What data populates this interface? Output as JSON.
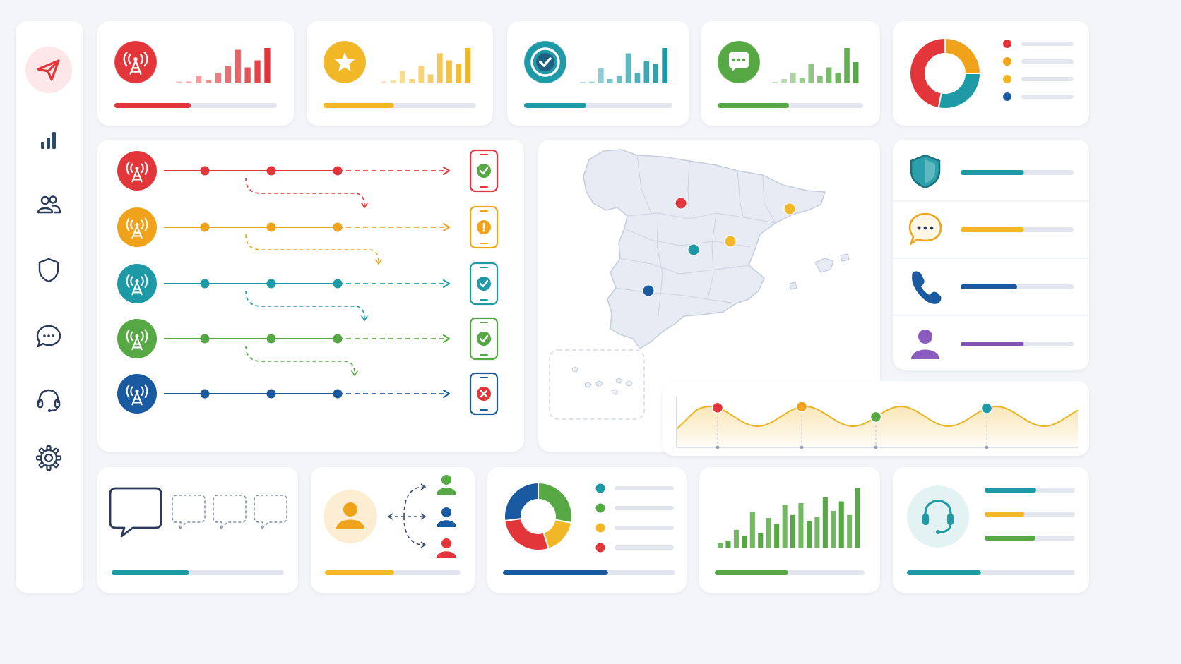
{
  "colors": {
    "red": "#e3363b",
    "orange": "#f0a21a",
    "yellow": "#f2b726",
    "teal": "#1d9aa6",
    "green": "#56a844",
    "blue": "#1a5aa0",
    "purple": "#8055b8",
    "navy": "#2a3a5a",
    "track": "#e3e6ee",
    "bg": "#f3f5f9"
  },
  "sidebar": {
    "items": [
      {
        "icon": "send-icon",
        "active": true
      },
      {
        "icon": "bar-chart-icon",
        "active": false
      },
      {
        "icon": "users-icon",
        "active": false
      },
      {
        "icon": "shield-icon",
        "active": false
      },
      {
        "icon": "chat-icon",
        "active": false
      },
      {
        "icon": "headset-icon",
        "active": false
      },
      {
        "icon": "gear-icon",
        "active": false
      }
    ]
  },
  "kpi_cards": [
    {
      "icon": "antenna-icon",
      "color": "red",
      "progress": 0.47,
      "bars": [
        0.05,
        0.05,
        0.22,
        0.1,
        0.3,
        0.5,
        0.95,
        0.45,
        0.65,
        1.0
      ]
    },
    {
      "icon": "star-icon",
      "color": "yellow",
      "progress": 0.46,
      "bars": [
        0.05,
        0.08,
        0.35,
        0.12,
        0.5,
        0.25,
        0.85,
        0.65,
        0.55,
        1.0
      ]
    },
    {
      "icon": "check-icon",
      "color": "teal",
      "progress": 0.42,
      "bars": [
        0.03,
        0.05,
        0.42,
        0.12,
        0.22,
        0.85,
        0.3,
        0.62,
        0.55,
        1.0
      ]
    },
    {
      "icon": "chat-bubble-icon",
      "color": "green",
      "progress": 0.49,
      "bars": [
        0.03,
        0.12,
        0.3,
        0.15,
        0.55,
        0.2,
        0.45,
        0.3,
        1.0,
        0.6
      ]
    }
  ],
  "donut_top": {
    "segments": [
      {
        "color": "orange",
        "value": 0.25
      },
      {
        "color": "teal",
        "value": 0.28
      },
      {
        "color": "red",
        "value": 0.47
      }
    ],
    "legend": [
      "red",
      "orange",
      "yellow",
      "blue"
    ]
  },
  "flow": {
    "rows": [
      {
        "color": "red",
        "status": "check"
      },
      {
        "color": "orange",
        "status": "warning"
      },
      {
        "color": "teal",
        "status": "check"
      },
      {
        "color": "green",
        "status": "check"
      },
      {
        "color": "blue",
        "status": "error"
      }
    ]
  },
  "map": {
    "pins": [
      {
        "color": "red"
      },
      {
        "color": "yellow"
      },
      {
        "color": "teal"
      },
      {
        "color": "yellow"
      },
      {
        "color": "blue"
      }
    ]
  },
  "channels": [
    {
      "icon": "shield-icon",
      "color": "teal",
      "progress": 0.56
    },
    {
      "icon": "chat-icon",
      "color": "yellow",
      "progress": 0.56
    },
    {
      "icon": "phone-icon",
      "color": "blue",
      "progress": 0.5
    },
    {
      "icon": "user-icon",
      "color": "purple",
      "progress": 0.56
    }
  ],
  "wave": {
    "markers": [
      {
        "color": "red"
      },
      {
        "color": "orange"
      },
      {
        "color": "green"
      },
      {
        "color": "teal"
      }
    ]
  },
  "bottom": {
    "chat_progress": 0.45,
    "routing_progress": 0.51,
    "donut_progress": 0.61,
    "bars_progress": 0.49,
    "support_progress": 0.44,
    "donut_segments": [
      {
        "color": "green",
        "value": 0.28
      },
      {
        "color": "yellow",
        "value": 0.17
      },
      {
        "color": "red",
        "value": 0.28
      },
      {
        "color": "blue",
        "value": 0.27
      }
    ],
    "donut_legend": [
      "teal",
      "green",
      "yellow",
      "red"
    ],
    "bars": [
      0.08,
      0.12,
      0.3,
      0.2,
      0.6,
      0.25,
      0.5,
      0.4,
      0.72,
      0.55,
      0.75,
      0.45,
      0.52,
      0.85,
      0.62,
      0.78,
      0.55,
      1.0
    ],
    "support_legend": [
      {
        "color": "teal",
        "fill": 0.57
      },
      {
        "color": "yellow",
        "fill": 0.44
      },
      {
        "color": "green",
        "fill": 0.56
      }
    ]
  }
}
